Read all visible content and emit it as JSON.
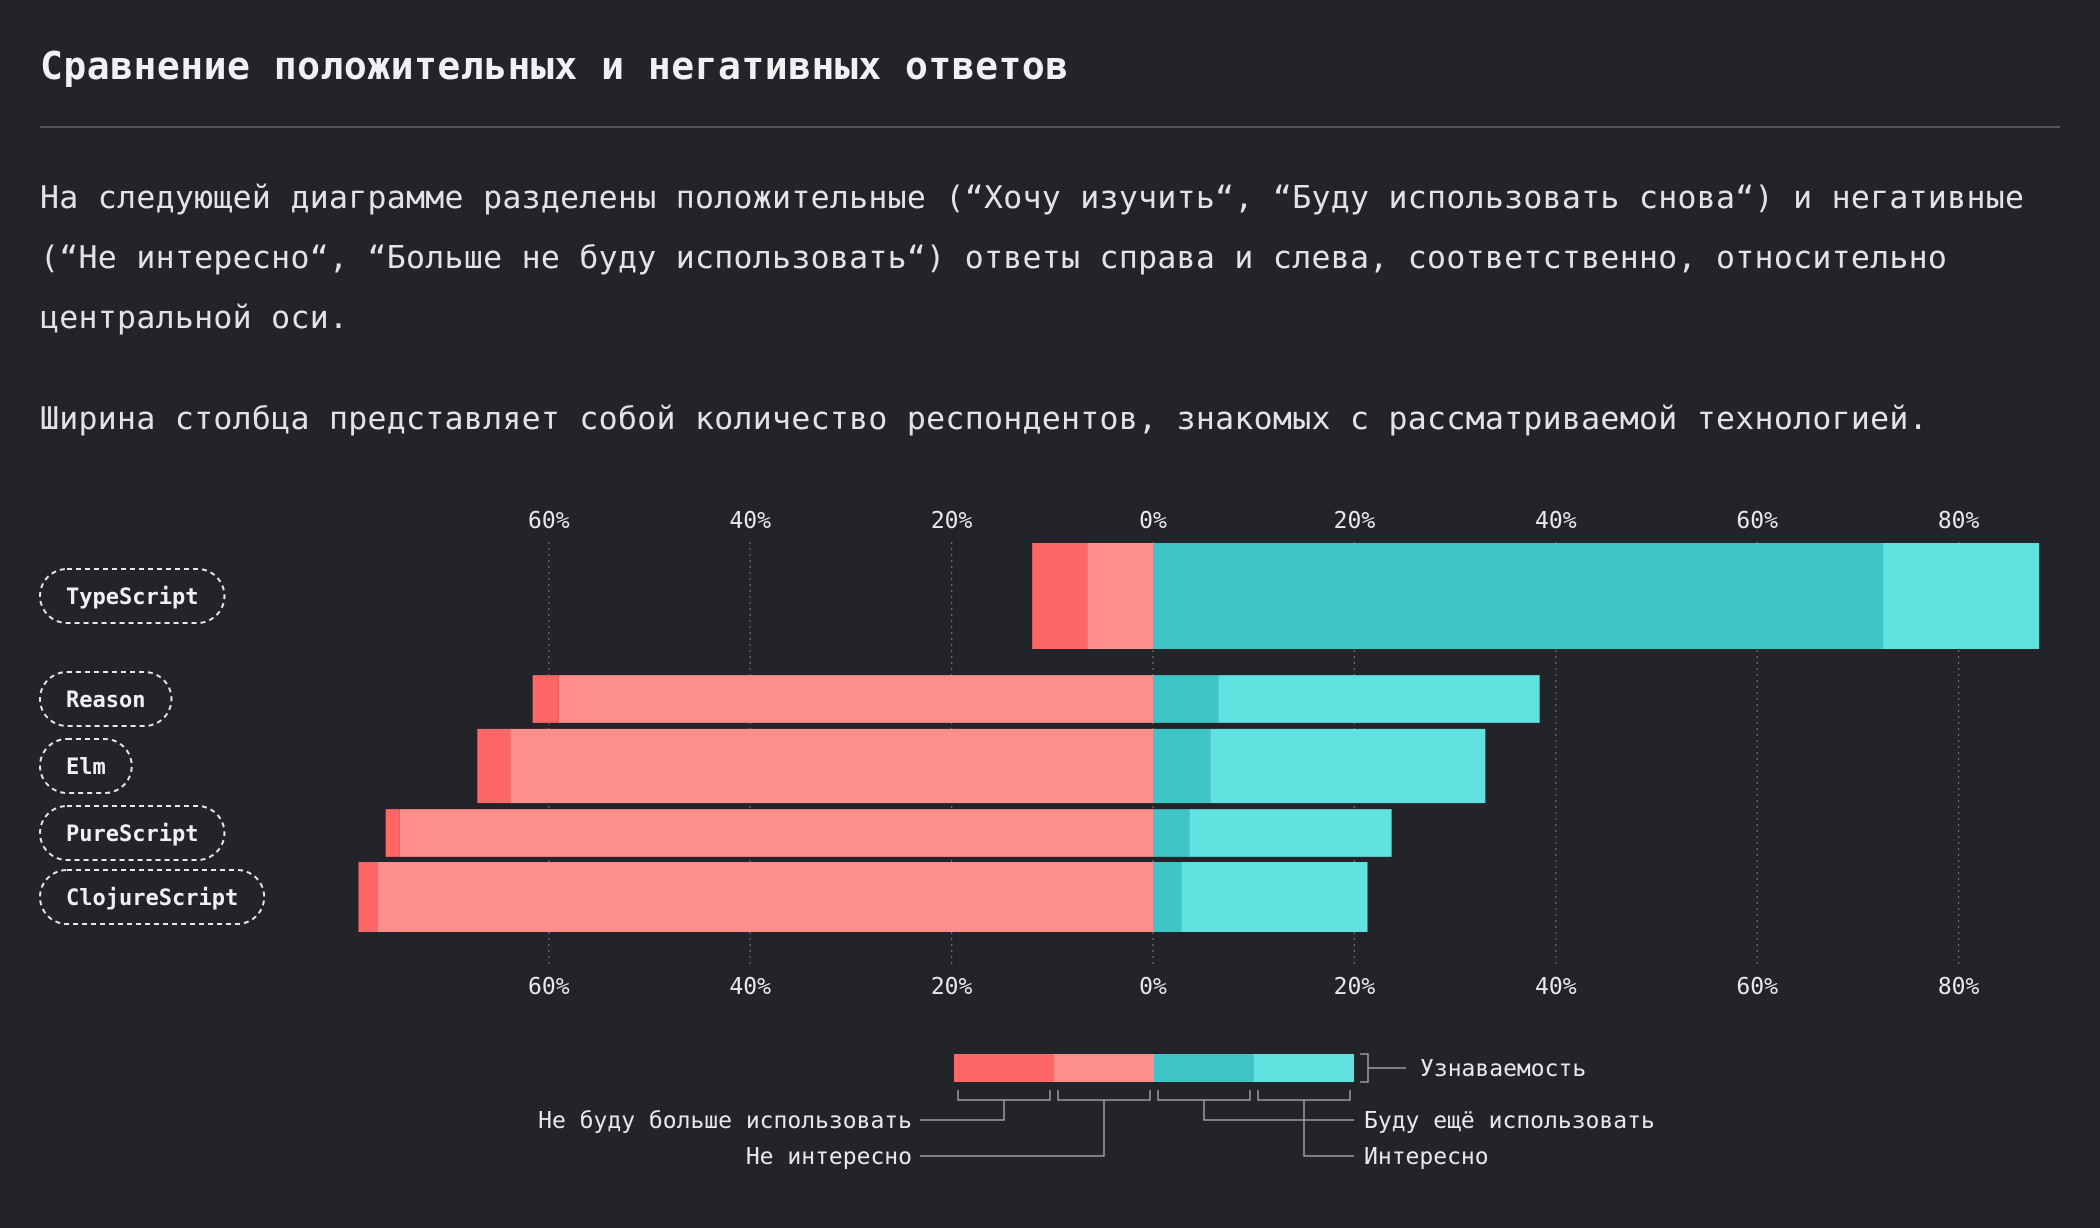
{
  "page": {
    "title": "Сравнение положительных и негативных ответов",
    "description_1": "На следующей диаграмме разделены положительные (“Хочу изучить“, “Буду использовать снова“) и негативные (“Не интересно“, “Больше не буду использовать“) ответы справа и слева, соответственно, относительно центральной оси.",
    "description_2": "Ширина столбца представляет собой количество респондентов, знакомых с рассматриваемой технологией."
  },
  "chart_data": {
    "type": "bar",
    "orientation": "horizontal-diverging",
    "title": "",
    "axis": {
      "ticks": [
        -60,
        -40,
        -20,
        0,
        20,
        40,
        60,
        80
      ],
      "tick_labels": [
        "60%",
        "40%",
        "20%",
        "0%",
        "20%",
        "40%",
        "60%",
        "80%"
      ],
      "min": -80,
      "max": 89,
      "grid": true,
      "positions": [
        "top",
        "bottom"
      ]
    },
    "categories": [
      "TypeScript",
      "Reason",
      "Elm",
      "PureScript",
      "ClojureScript"
    ],
    "awareness_relative": [
      1.0,
      0.45,
      0.7,
      0.45,
      0.66
    ],
    "series": [
      {
        "name": "Не буду больше использовать",
        "side": "negative",
        "color": "#ff6666",
        "values": [
          5.5,
          2.6,
          3.3,
          1.4,
          1.9
        ]
      },
      {
        "name": "Не интересно",
        "side": "negative",
        "color": "#fe8e8b",
        "values": [
          6.5,
          59,
          63.8,
          74.8,
          77
        ]
      },
      {
        "name": "Буду ещё использовать",
        "side": "positive",
        "color": "#40c5c7",
        "values": [
          72.5,
          6.5,
          5.7,
          3.6,
          2.8
        ]
      },
      {
        "name": "Интересно",
        "side": "positive",
        "color": "#62e1e1",
        "values": [
          15.5,
          31.9,
          27.3,
          20.1,
          18.5
        ]
      }
    ],
    "legend": {
      "awareness_label": "Узнаваемость",
      "placement": "bottom-center"
    }
  },
  "colors": {
    "background": "#232429",
    "text": "#e8e8ea",
    "grid": "#6a6b72",
    "divider": "#55565c"
  }
}
